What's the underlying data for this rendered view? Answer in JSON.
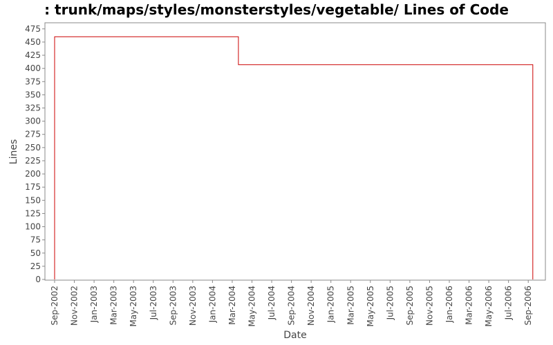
{
  "chart_data": {
    "type": "line",
    "title": ": trunk/maps/styles/monsterstyles/vegetable/ Lines of Code",
    "xlabel": "Date",
    "ylabel": "Lines",
    "x_ticks": [
      "Sep-2002",
      "Nov-2002",
      "Jan-2003",
      "Mar-2003",
      "May-2003",
      "Jul-2003",
      "Sep-2003",
      "Nov-2003",
      "Jan-2004",
      "Mar-2004",
      "May-2004",
      "Jul-2004",
      "Sep-2004",
      "Nov-2004",
      "Jan-2005",
      "Mar-2005",
      "May-2005",
      "Jul-2005",
      "Sep-2005",
      "Nov-2005",
      "Jan-2006",
      "Mar-2006",
      "May-2006",
      "Jul-2006",
      "Sep-2006"
    ],
    "y_ticks": [
      0,
      25,
      50,
      75,
      100,
      125,
      150,
      175,
      200,
      225,
      250,
      275,
      300,
      325,
      350,
      375,
      400,
      425,
      450,
      475
    ],
    "ylim": [
      0,
      480
    ],
    "step": true,
    "series_color": "#cc0000",
    "points": [
      {
        "x": "2002-09-01",
        "y": 0
      },
      {
        "x": "2002-09-01",
        "y": 460
      },
      {
        "x": "2004-03-20",
        "y": 460
      },
      {
        "x": "2004-03-20",
        "y": 407
      },
      {
        "x": "2006-09-15",
        "y": 407
      },
      {
        "x": "2006-09-15",
        "y": 0
      }
    ]
  }
}
